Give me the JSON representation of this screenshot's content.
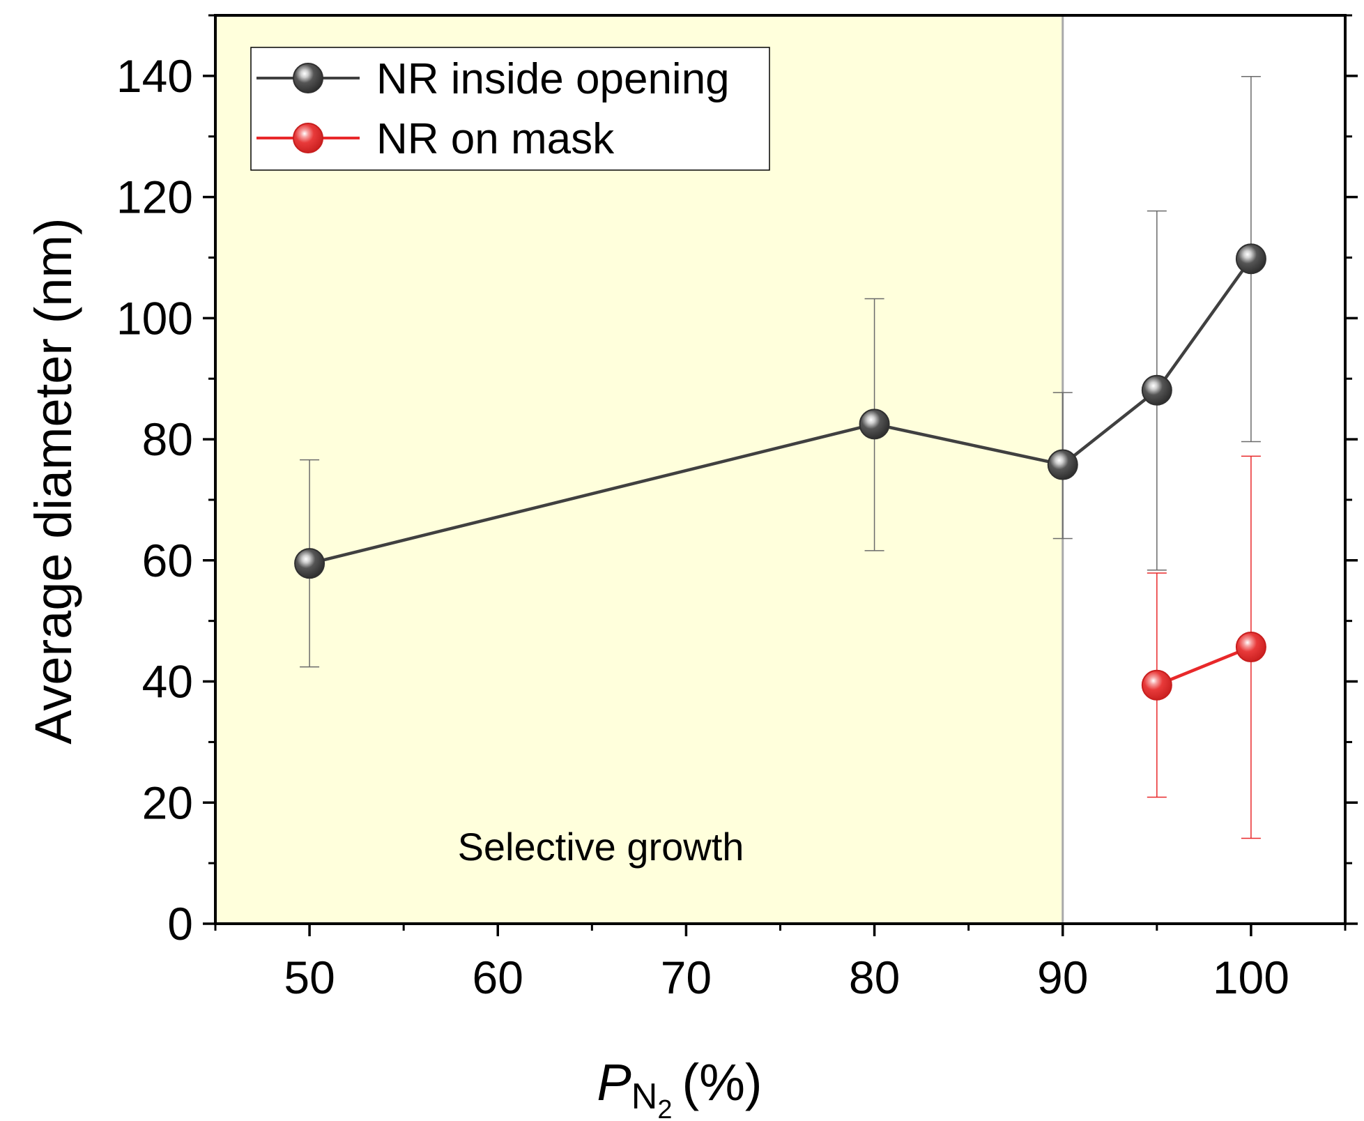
{
  "colors": {
    "region_fill": "#ffffdc",
    "region_line": "#a9a9a9",
    "series_dark": "#404040",
    "series_red": "#e8282a",
    "err_dark": "#6a6a6a",
    "err_red": "#e8282a"
  },
  "chart_data": {
    "type": "line",
    "xlabel_main": "P",
    "xlabel_sub": "N",
    "xlabel_subsub": "2",
    "xlabel_unit": "(%)",
    "ylabel": "Average diameter (nm)",
    "xlim": [
      45,
      105
    ],
    "ylim": [
      0,
      150
    ],
    "xticks": [
      50,
      60,
      70,
      80,
      90,
      100
    ],
    "xtick_labels": [
      "50",
      "60",
      "70",
      "80",
      "90",
      "100"
    ],
    "xminor": [
      45,
      55,
      65,
      75,
      85,
      95,
      105
    ],
    "yticks": [
      0,
      20,
      40,
      60,
      80,
      100,
      120,
      140
    ],
    "ytick_labels": [
      "0",
      "20",
      "40",
      "60",
      "80",
      "100",
      "120",
      "140"
    ],
    "yminor": [
      10,
      30,
      50,
      70,
      90,
      110,
      130,
      150
    ],
    "shaded_region": {
      "x_from": 45,
      "x_to": 90,
      "label": "Selective growth"
    },
    "series": [
      {
        "name": "NR inside opening",
        "color_key": "series_dark",
        "x": [
          50,
          80,
          90,
          95,
          100
        ],
        "y": [
          59.5,
          82.5,
          75.8,
          88.1,
          109.8
        ],
        "err_low": [
          42.4,
          61.6,
          63.6,
          58.4,
          79.6
        ],
        "err_high": [
          76.6,
          103.2,
          87.7,
          117.7,
          139.9
        ]
      },
      {
        "name": "NR on mask",
        "color_key": "series_red",
        "x": [
          95,
          100
        ],
        "y": [
          39.4,
          45.7
        ],
        "err_low": [
          20.9,
          14.1
        ],
        "err_high": [
          57.9,
          77.2
        ]
      }
    ],
    "legend_position": "top-left"
  }
}
